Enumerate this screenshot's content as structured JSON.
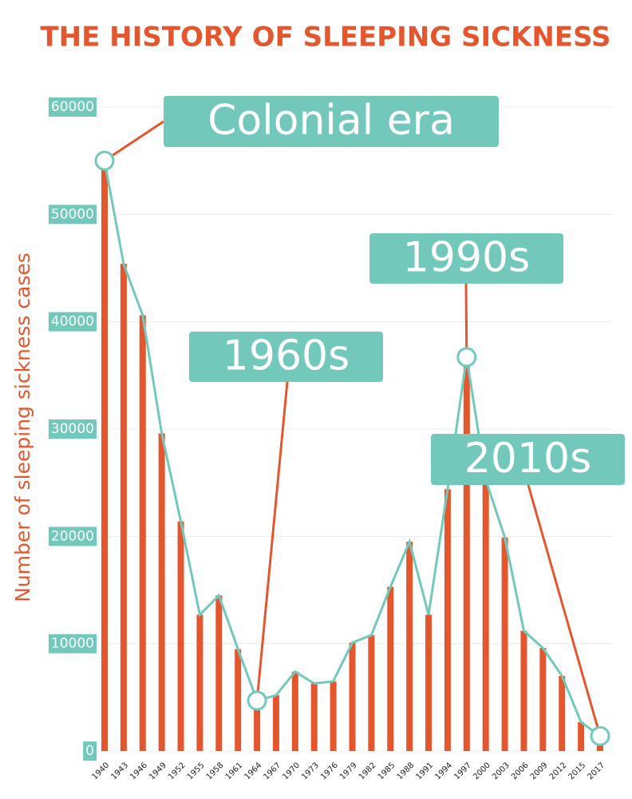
{
  "chart_data": {
    "type": "bar",
    "title": "THE HISTORY OF SLEEPING SICKNESS",
    "y_label": "Number of sleeping sickness cases",
    "categories": [
      "1940",
      "1943",
      "1946",
      "1949",
      "1952",
      "1955",
      "1958",
      "1961",
      "1964",
      "1967",
      "1970",
      "1973",
      "1976",
      "1979",
      "1982",
      "1985",
      "1988",
      "1991",
      "1994",
      "1997",
      "2000",
      "2003",
      "2006",
      "2009",
      "2012",
      "2015",
      "2017"
    ],
    "values": [
      55000,
      45400,
      40600,
      29600,
      21400,
      12700,
      14500,
      9500,
      4700,
      5200,
      7400,
      6300,
      6500,
      10100,
      10800,
      15300,
      19500,
      12700,
      24400,
      36700,
      25300,
      19900,
      11200,
      9600,
      7000,
      2700,
      1400
    ],
    "color": "#e4572e",
    "line_color": "#72c9bb",
    "ylim": [
      0,
      60000
    ],
    "yticks": [
      0,
      10000,
      20000,
      30000,
      40000,
      50000,
      60000
    ],
    "grid": true,
    "annotations": [
      "Colonial era",
      "1960s",
      "1990s",
      "2010s"
    ]
  }
}
